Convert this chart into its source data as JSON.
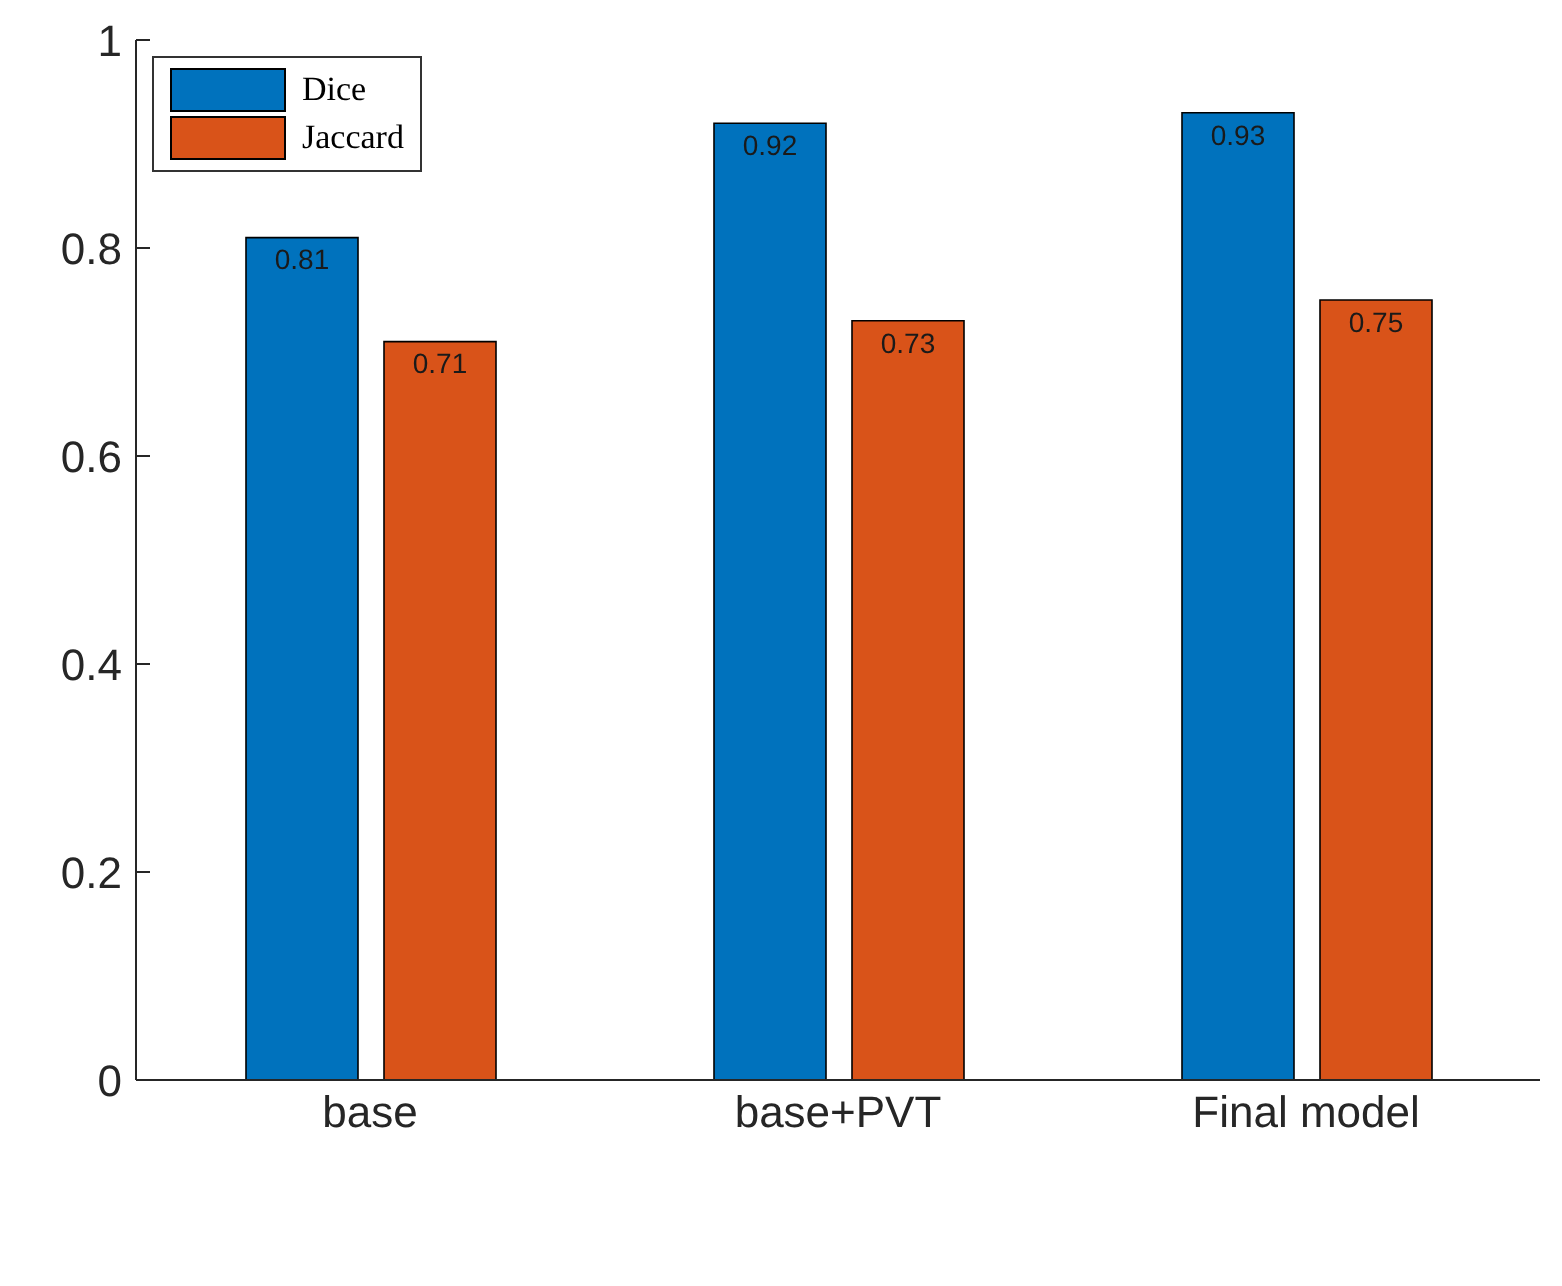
{
  "chart_data": {
    "type": "bar",
    "categories": [
      "base",
      "base+PVT",
      "Final model"
    ],
    "series": [
      {
        "name": "Dice",
        "color": "#0072bd",
        "values": [
          0.81,
          0.92,
          0.93
        ]
      },
      {
        "name": "Jaccard",
        "color": "#d95319",
        "values": [
          0.71,
          0.73,
          0.75
        ]
      }
    ],
    "ylim": [
      0,
      1
    ],
    "yticks": [
      0,
      0.2,
      0.4,
      0.6,
      0.8,
      1
    ],
    "data_labels": true,
    "legend": "top left",
    "grid": false
  }
}
